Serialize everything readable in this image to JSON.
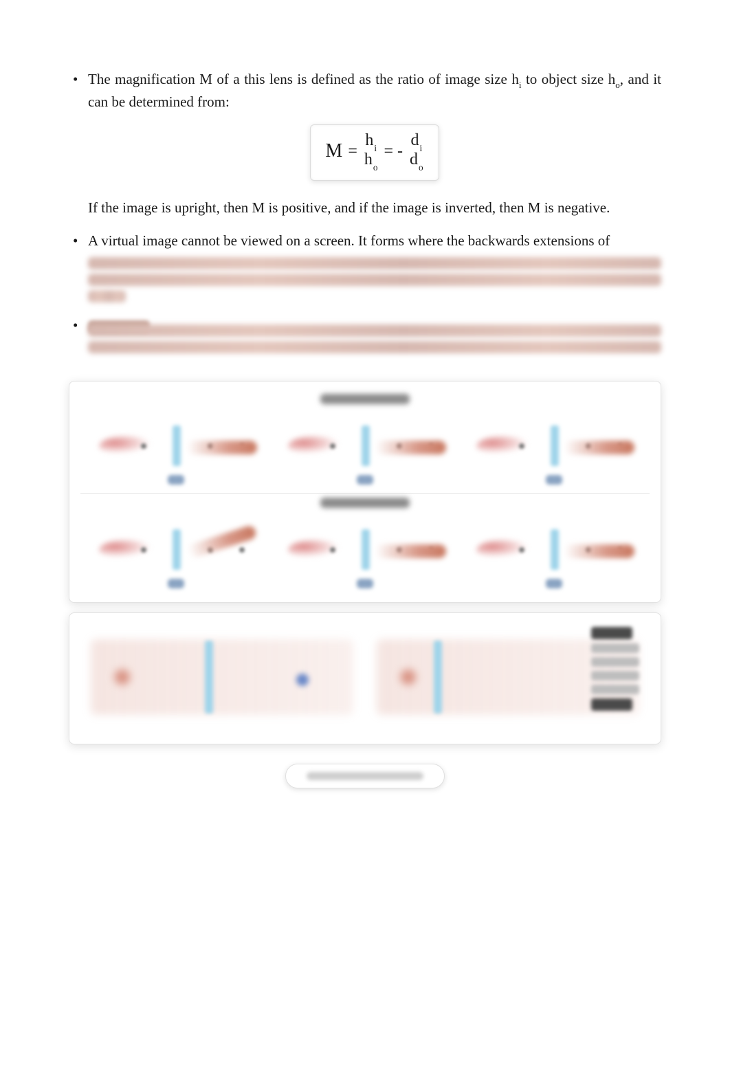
{
  "list": {
    "magnification_intro_html": "The magnification M of a this lens is defined as the ratio of image size h<span class=\"sub\">i</span> to object size h<span class=\"sub\">o</span>, and it can be determined from:",
    "magnification_followup": "If the image is upright, then M is positive, and if the image is inverted, then M is negative.",
    "virtual_intro": "A virtual image  cannot be viewed on a screen. It forms where the backwards extensions of"
  },
  "equation": {
    "M": "M",
    "eq1": "=",
    "hi": "h",
    "hi_sub": "i",
    "ho": "h",
    "ho_sub": "o",
    "eq2": "= -",
    "di": "d",
    "di_sub": "i",
    "do": "d",
    "do_sub": "o"
  },
  "colors": {
    "text": "#1a1a1a",
    "lens_blue": "#9fd4ea",
    "ray_pink": "#d89888",
    "box_border": "#e2e2e2",
    "shadow": "rgba(0,0,0,0.12)",
    "blur_brown": "#d6b8b0",
    "label_blue": "#8aa3c2",
    "grey_blob": "#8a8a8a"
  },
  "figure1": {
    "rows": 2,
    "cols": 3,
    "lens_color": "#9fd4ea",
    "ray_color": "#d89888",
    "label_color": "#8aa3c2"
  },
  "figure2": {
    "lens_color": "#9fd4ea",
    "ray_color": "#d89888",
    "tag_grey": "#bdbdbd",
    "tag_dark": "#4a4a4a"
  },
  "button": {
    "aria": "View full document"
  }
}
